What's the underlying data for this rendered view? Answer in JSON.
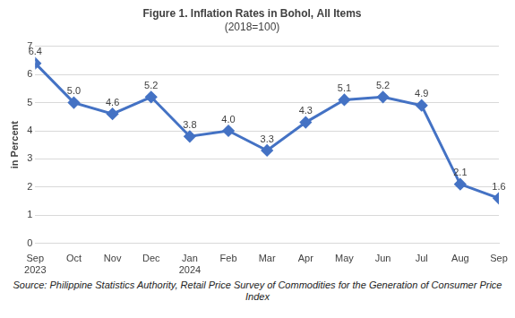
{
  "chart_data": {
    "type": "line",
    "title": "Figure 1. Inflation Rates in Bohol, All Items",
    "subtitle": "(2018=100)",
    "y_label": "in Percent",
    "source": "Source: Philippine Statistics Authority, Retail Price Survey of Commodities for the Generation of Consumer Price Index",
    "categories": [
      "Sep\n2023",
      "Oct",
      "Nov",
      "Dec",
      "Jan\n2024",
      "Feb",
      "Mar",
      "Apr",
      "May",
      "Jun",
      "Jul",
      "Aug",
      "Sep"
    ],
    "values": [
      6.4,
      5.0,
      4.6,
      5.2,
      3.8,
      4.0,
      3.3,
      4.3,
      5.1,
      5.2,
      4.9,
      2.1,
      1.6
    ],
    "value_labels": [
      "6.4",
      "5.0",
      "4.6",
      "5.2",
      "3.8",
      "4.0",
      "3.3",
      "4.3",
      "5.1",
      "5.2",
      "4.9",
      "2.1",
      "1.6"
    ],
    "color": "#4472c4",
    "marker": "diamond",
    "ylim": [
      0,
      7
    ],
    "yticks": [
      0,
      1,
      2,
      3,
      4,
      5,
      6,
      7
    ],
    "grid": true,
    "data_labels": true
  }
}
